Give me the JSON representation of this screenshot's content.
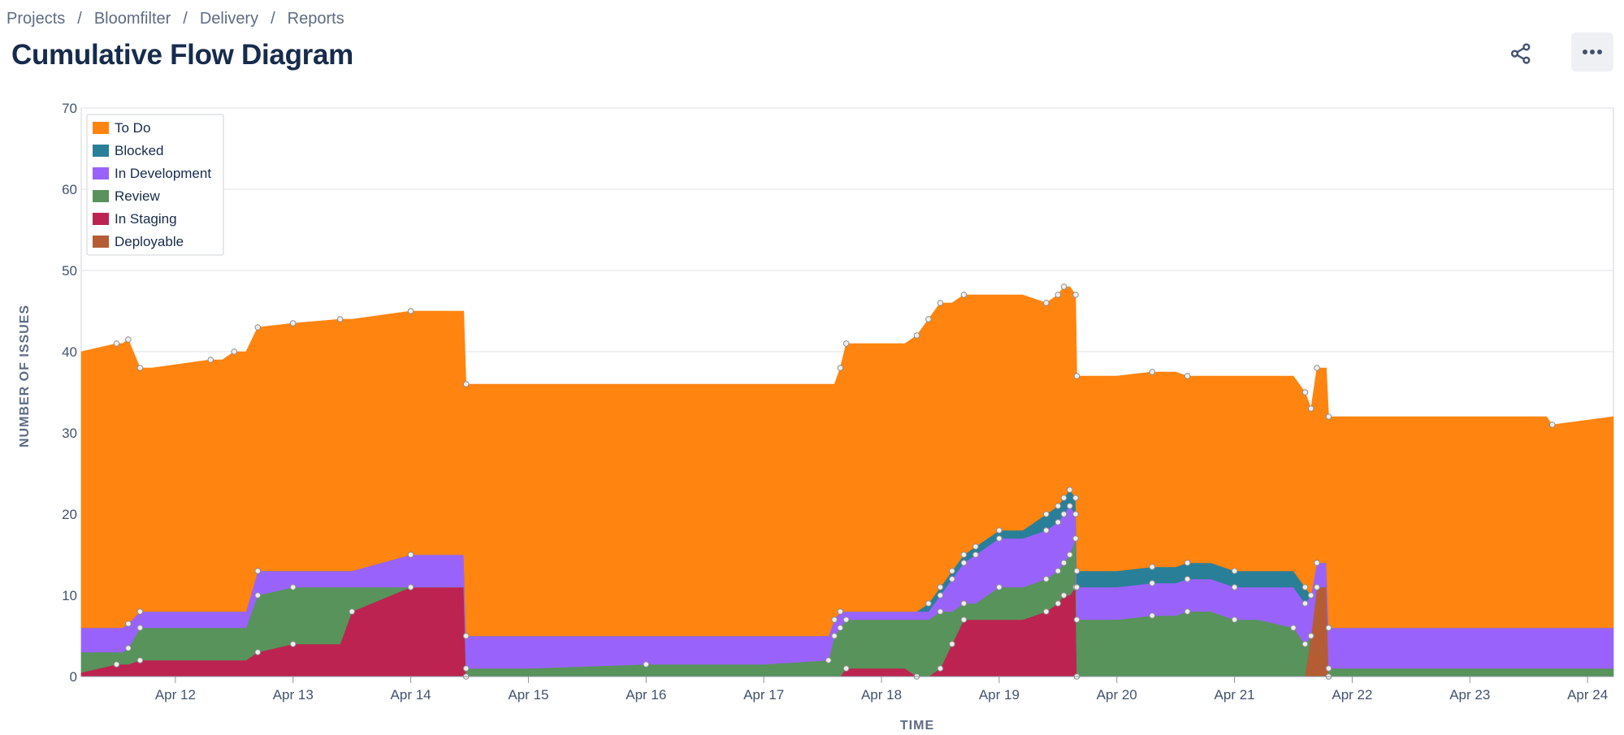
{
  "breadcrumb": [
    "Projects",
    "Bloomfilter",
    "Delivery",
    "Reports"
  ],
  "breadcrumb_separator": "/",
  "page": {
    "title": "Cumulative Flow Diagram"
  },
  "actions": {
    "share_icon": "share-icon",
    "more_icon": "more-horizontal-icon"
  },
  "chart_data": {
    "type": "area",
    "stacked": true,
    "title": "",
    "xlabel": "TIME",
    "ylabel": "NUMBER OF ISSUES",
    "ylim": [
      0,
      70
    ],
    "yticks": [
      0,
      10,
      20,
      30,
      40,
      50,
      60,
      70
    ],
    "xlim": [
      11.2,
      24.22
    ],
    "xticks": [
      {
        "x": 12,
        "label": "Apr 12"
      },
      {
        "x": 13,
        "label": "Apr 13"
      },
      {
        "x": 14,
        "label": "Apr 14"
      },
      {
        "x": 15,
        "label": "Apr 15"
      },
      {
        "x": 16,
        "label": "Apr 16"
      },
      {
        "x": 17,
        "label": "Apr 17"
      },
      {
        "x": 18,
        "label": "Apr 18"
      },
      {
        "x": 19,
        "label": "Apr 19"
      },
      {
        "x": 20,
        "label": "Apr 20"
      },
      {
        "x": 21,
        "label": "Apr 21"
      },
      {
        "x": 22,
        "label": "Apr 22"
      },
      {
        "x": 23,
        "label": "Apr 23"
      },
      {
        "x": 24,
        "label": "Apr 24"
      }
    ],
    "grid": true,
    "legend_position": "top-left",
    "x": [
      11.2,
      11.5,
      11.55,
      11.6,
      11.7,
      11.8,
      12.3,
      12.4,
      12.5,
      12.6,
      12.7,
      13.0,
      13.4,
      13.5,
      14.0,
      14.45,
      14.47,
      14.5,
      15.0,
      16.0,
      17.0,
      17.55,
      17.6,
      17.65,
      17.7,
      18.0,
      18.2,
      18.3,
      18.4,
      18.5,
      18.6,
      18.7,
      18.8,
      19.0,
      19.2,
      19.4,
      19.5,
      19.55,
      19.6,
      19.65,
      19.66,
      20.0,
      20.3,
      20.5,
      20.6,
      20.8,
      21.0,
      21.2,
      21.5,
      21.6,
      21.65,
      21.7,
      21.75,
      21.78,
      21.8,
      22.0,
      23.0,
      23.6,
      23.65,
      23.7,
      24.22
    ],
    "series": [
      {
        "name": "Deployable",
        "color": "#B65C35",
        "values": [
          0,
          0,
          0,
          0,
          0,
          0,
          0,
          0,
          0,
          0,
          0,
          0,
          0,
          0,
          0,
          0,
          0,
          0,
          0,
          0,
          0,
          0,
          0,
          0,
          0,
          0,
          0,
          0,
          0,
          0,
          0,
          0,
          0,
          0,
          0,
          0,
          0,
          0,
          0,
          0,
          0,
          0,
          0,
          0,
          0,
          0,
          0,
          0,
          0,
          0,
          5,
          11,
          11,
          11,
          0,
          0,
          0,
          0,
          0,
          0,
          0
        ]
      },
      {
        "name": "In Staging",
        "color": "#BD2350",
        "values": [
          0.5,
          1.5,
          1.5,
          1.5,
          2,
          2,
          2,
          2,
          2,
          2,
          3,
          4,
          4,
          8,
          11,
          11,
          0,
          0,
          0,
          0,
          0,
          0,
          0,
          0,
          1,
          1,
          1,
          0,
          0,
          1,
          4,
          7,
          7,
          7,
          7,
          8,
          9,
          10,
          10,
          11,
          0,
          0,
          0,
          0,
          0,
          0,
          0,
          0,
          0,
          0,
          0,
          0,
          0,
          0,
          0,
          0,
          0,
          0,
          0,
          0,
          0
        ]
      },
      {
        "name": "Review",
        "color": "#57935A",
        "values": [
          2.5,
          1.5,
          1.5,
          2,
          4,
          4,
          4,
          4,
          4,
          4,
          7,
          7,
          7,
          3,
          0,
          0,
          1,
          1,
          1,
          1.5,
          1.5,
          2,
          5,
          6,
          6,
          6,
          6,
          7,
          7,
          7,
          4,
          2,
          2,
          4,
          4,
          4,
          4,
          4,
          5,
          6,
          7,
          7,
          7.5,
          7.5,
          8,
          8,
          7,
          7,
          6,
          4,
          0,
          0,
          0,
          0,
          1,
          1,
          1,
          1,
          1,
          1,
          1
        ]
      },
      {
        "name": "In Development",
        "color": "#9963FB",
        "values": [
          3,
          3,
          3,
          3,
          2,
          2,
          2,
          2,
          2,
          2,
          3,
          2,
          2,
          2,
          4,
          4,
          4,
          4,
          4,
          3.5,
          3.5,
          3,
          2,
          2,
          1,
          1,
          1,
          1,
          1,
          2,
          4,
          5,
          6,
          6,
          6,
          6,
          6,
          6,
          6,
          3,
          4,
          4,
          4,
          4,
          4,
          4,
          4,
          4,
          5,
          5,
          5,
          3,
          3,
          3,
          5,
          5,
          5,
          5,
          5,
          5,
          5
        ]
      },
      {
        "name": "Blocked",
        "color": "#2A7F98",
        "values": [
          0,
          0,
          0,
          0,
          0,
          0,
          0,
          0,
          0,
          0,
          0,
          0,
          0,
          0,
          0,
          0,
          0,
          0,
          0,
          0,
          0,
          0,
          0,
          0,
          0,
          0,
          0,
          0,
          1,
          1,
          1,
          1,
          1,
          1,
          1,
          2,
          2,
          2,
          2,
          2,
          2,
          2,
          2,
          2,
          2,
          2,
          2,
          2,
          2,
          2,
          0,
          0,
          0,
          0,
          0,
          0,
          0,
          0,
          0,
          0,
          0
        ]
      },
      {
        "name": "To Do",
        "color": "#FF8410",
        "values": [
          34,
          35,
          35,
          35,
          30,
          30,
          31,
          31,
          32,
          32,
          30,
          30.5,
          31,
          31,
          30,
          30,
          31,
          31,
          31,
          31,
          31,
          31,
          29,
          30,
          33,
          33,
          33,
          34,
          35,
          35,
          33,
          32,
          31,
          29,
          29,
          26,
          26,
          26,
          25,
          25,
          24,
          24,
          24,
          24,
          23,
          23,
          24,
          24,
          24,
          24,
          23,
          24,
          24,
          24,
          26,
          26,
          26,
          26,
          26,
          25,
          26
        ]
      }
    ]
  }
}
